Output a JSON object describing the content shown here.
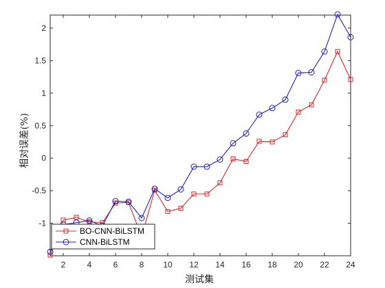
{
  "chart_data": {
    "type": "line",
    "title": "",
    "xlabel": "测试集",
    "ylabel": "相对误差(%)",
    "xlim": [
      1,
      24
    ],
    "ylim": [
      -1.5,
      2.2
    ],
    "xticks": [
      2,
      4,
      6,
      8,
      10,
      12,
      14,
      16,
      18,
      20,
      22,
      24
    ],
    "yticks": [
      -1,
      -0.5,
      0,
      0.5,
      1,
      1.5,
      2
    ],
    "ytick_labels": [
      "-1",
      "-0.5",
      "0",
      "0.5",
      "1",
      "1.5",
      "2"
    ],
    "grid": false,
    "legend_position": "bottom-left",
    "x": [
      1,
      2,
      3,
      4,
      5,
      6,
      7,
      8,
      9,
      10,
      11,
      12,
      13,
      14,
      15,
      16,
      17,
      18,
      19,
      20,
      21,
      22,
      23,
      24
    ],
    "series": [
      {
        "name": "BO-CNN-BiLSTM",
        "color": "#d62728",
        "marker": "square",
        "values": [
          -1.49,
          -0.95,
          -0.91,
          -0.98,
          -0.99,
          -0.69,
          -0.68,
          -1.21,
          -0.49,
          -0.82,
          -0.77,
          -0.55,
          -0.55,
          -0.38,
          -0.01,
          -0.05,
          0.26,
          0.25,
          0.36,
          0.71,
          0.82,
          1.2,
          1.64,
          1.21
        ]
      },
      {
        "name": "CNN-BiLSTM",
        "color": "#1f1fb4",
        "marker": "circle",
        "values": [
          -1.44,
          -1.02,
          -0.99,
          -0.96,
          -1.04,
          -0.66,
          -0.67,
          -0.92,
          -0.47,
          -0.61,
          -0.48,
          -0.13,
          -0.13,
          -0.02,
          0.23,
          0.38,
          0.67,
          0.77,
          0.9,
          1.31,
          1.32,
          1.64,
          2.21,
          1.86
        ]
      }
    ]
  }
}
